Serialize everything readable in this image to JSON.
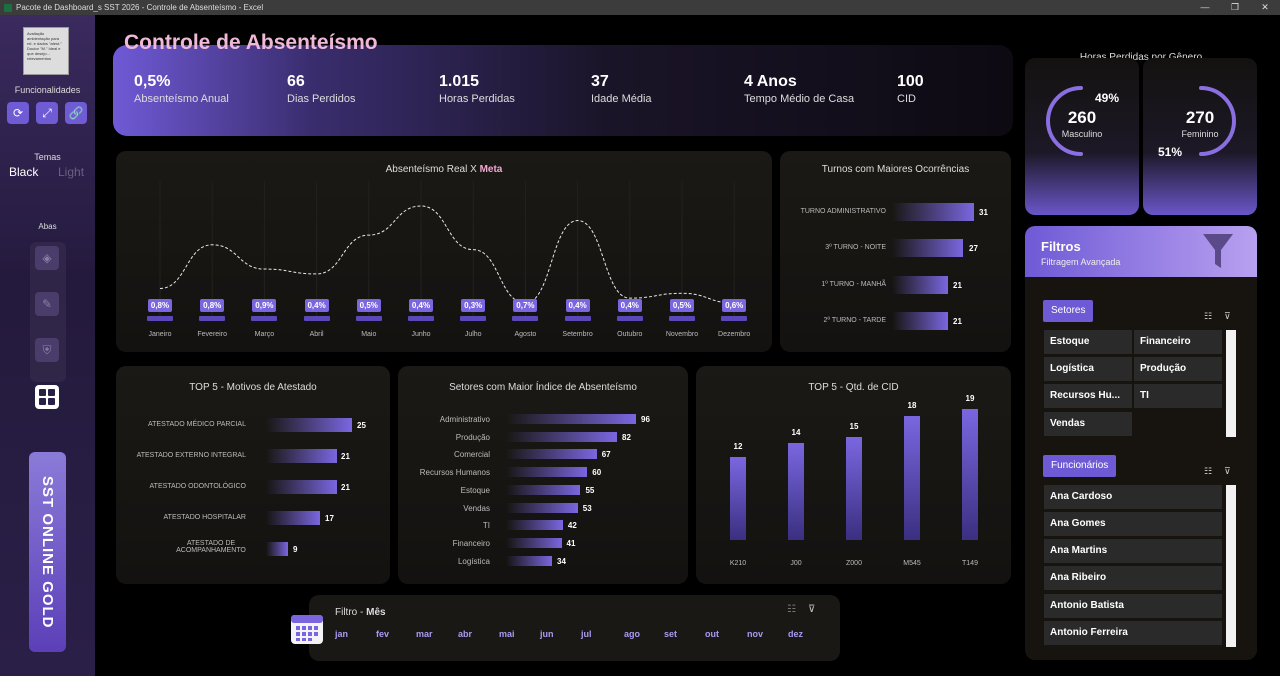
{
  "window": {
    "title": "Pacote de Dashboard_s SST 2026 - Controle de Absenteísmo - Excel",
    "minimize": "—",
    "restore": "❐",
    "close": "✕"
  },
  "sidebar": {
    "logo_text": "Avaliação ambientação para rel. e dados \"atest.\" Doutor \"M.\" Ideal e que desejo... relevamentos",
    "funcionalidades_label": "Funcionalidades",
    "buttons": [
      "refresh-icon",
      "expand-icon",
      "link-icon"
    ],
    "temas_label": "Temas",
    "theme_black": "Black",
    "theme_light": "Light",
    "abas_label": "Abas",
    "brand": "SST ONLINE GOLD"
  },
  "title": "Controle de Absenteísmo",
  "kpis": [
    {
      "value": "0,5%",
      "label": "Absenteísmo Anual"
    },
    {
      "value": "66",
      "label": "Dias Perdidos"
    },
    {
      "value": "1.015",
      "label": "Horas Perdidas"
    },
    {
      "value": "37",
      "label": "Idade Média"
    },
    {
      "value": "4 Anos",
      "label": "Tempo Médio de Casa"
    },
    {
      "value": "100",
      "label": "CID"
    }
  ],
  "line_panel": {
    "title_prefix": "Absenteísmo Real X ",
    "title_highlight": "Meta"
  },
  "turnos": {
    "title": "Turnos com Maiores Ocorrências",
    "rows": [
      {
        "label": "TURNO ADMINISTRATIVO",
        "value": "31"
      },
      {
        "label": "3º TURNO - NOITE",
        "value": "27"
      },
      {
        "label": "1º TURNO - MANHÃ",
        "value": "21"
      },
      {
        "label": "2º TURNO - TARDE",
        "value": "21"
      }
    ]
  },
  "motivos": {
    "title": "TOP 5 - Motivos de Atestado",
    "rows": [
      {
        "label": "ATESTADO MÉDICO PARCIAL",
        "value": "25"
      },
      {
        "label": "ATESTADO EXTERNO INTEGRAL",
        "value": "21"
      },
      {
        "label": "ATESTADO ODONTOLÓGICO",
        "value": "21"
      },
      {
        "label": "ATESTADO HOSPITALAR",
        "value": "17"
      },
      {
        "label": "ATESTADO DE ACOMPANHAMENTO",
        "value": "9"
      }
    ]
  },
  "setores_chart": {
    "title": "Setores com Maior Índice de Absenteísmo",
    "rows": [
      {
        "label": "Administrativo",
        "value": "96"
      },
      {
        "label": "Produção",
        "value": "82"
      },
      {
        "label": "Comercial",
        "value": "67"
      },
      {
        "label": "Recursos Humanos",
        "value": "60"
      },
      {
        "label": "Estoque",
        "value": "55"
      },
      {
        "label": "Vendas",
        "value": "53"
      },
      {
        "label": "TI",
        "value": "42"
      },
      {
        "label": "Financeiro",
        "value": "41"
      },
      {
        "label": "Logística",
        "value": "34"
      }
    ]
  },
  "cid": {
    "title": "TOP 5 - Qtd. de CID"
  },
  "genero": {
    "title": "Horas Perdidas por Gênero",
    "masc_value": "260",
    "masc_label": "Masculino",
    "masc_pct": "49%",
    "fem_value": "270",
    "fem_label": "Feminino",
    "fem_pct": "51%"
  },
  "filtros": {
    "title": "Filtros",
    "subtitle": "Filtragem Avançada",
    "setores_label": "Setores",
    "setores": [
      "Estoque",
      "Financeiro",
      "Logística",
      "Produção",
      "Recursos Hu...",
      "TI",
      "Vendas"
    ],
    "funcionarios_label": "Funcionários",
    "funcionarios": [
      "Ana Cardoso",
      "Ana Gomes",
      "Ana Martins",
      "Ana Ribeiro",
      "Antonio Batista",
      "Antonio Ferreira"
    ]
  },
  "mes_filter": {
    "label_prefix": "Filtro - ",
    "label_bold": "Mês",
    "months": [
      "jan",
      "fev",
      "mar",
      "abr",
      "mai",
      "jun",
      "jul",
      "ago",
      "set",
      "out",
      "nov",
      "dez"
    ]
  },
  "chart_data": [
    {
      "type": "line",
      "title": "Absenteísmo Real X Meta",
      "categories": [
        "Janeiro",
        "Fevereiro",
        "Março",
        "Abril",
        "Maio",
        "Junho",
        "Julho",
        "Agosto",
        "Setembro",
        "Outubro",
        "Novembro",
        "Dezembro"
      ],
      "series": [
        {
          "values": [
            0.8,
            0.8,
            0.9,
            0.4,
            0.5,
            0.4,
            0.3,
            0.7,
            0.4,
            0.4,
            0.5,
            0.6
          ],
          "labels": [
            "0,8%",
            "0,8%",
            "0,9%",
            "0,4%",
            "0,5%",
            "0,4%",
            "0,3%",
            "0,7%",
            "0,4%",
            "0,4%",
            "0,5%",
            "0,6%"
          ]
        },
        {
          "values": [
            0.6,
            1.5,
            1.0,
            0.9,
            1.7,
            2.3,
            1.4,
            0.3,
            2.0,
            0.4,
            0.5,
            0.3
          ]
        }
      ]
    },
    {
      "type": "bar",
      "title": "TOP 5 - Qtd. de CID",
      "categories": [
        "K210",
        "J00",
        "Z000",
        "M545",
        "T149"
      ],
      "values": [
        12,
        14,
        15,
        18,
        19
      ]
    }
  ]
}
